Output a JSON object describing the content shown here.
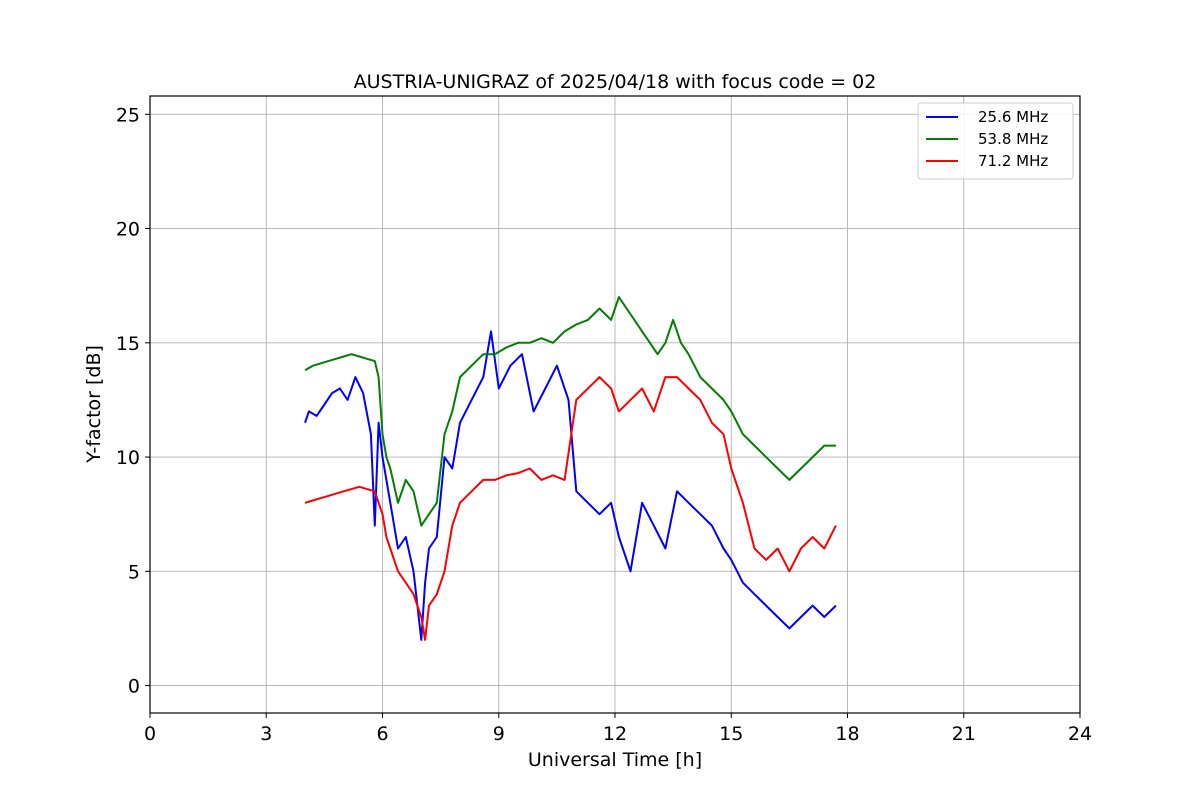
{
  "chart_data": {
    "type": "line",
    "title": "AUSTRIA-UNIGRAZ of 2025/04/18 with focus code = 02",
    "xlabel": "Universal Time [h]",
    "ylabel": "Y-factor [dB]",
    "xlim": [
      0,
      24
    ],
    "ylim": [
      -1.2,
      25.8
    ],
    "xticks": [
      0,
      3,
      6,
      9,
      12,
      15,
      18,
      21,
      24
    ],
    "yticks": [
      0,
      5,
      10,
      15,
      20,
      25
    ],
    "grid": true,
    "legend_position": "top-right",
    "series": [
      {
        "name": "25.6 MHz",
        "color": "#0000ff",
        "x": [
          4.0,
          4.1,
          4.3,
          4.5,
          4.7,
          4.9,
          5.1,
          5.3,
          5.5,
          5.7,
          5.8,
          5.9,
          6.0,
          6.1,
          6.2,
          6.4,
          6.6,
          6.8,
          7.0,
          7.1,
          7.2,
          7.4,
          7.6,
          7.8,
          8.0,
          8.3,
          8.6,
          8.8,
          9.0,
          9.3,
          9.6,
          9.9,
          10.2,
          10.5,
          10.8,
          11.0,
          11.3,
          11.6,
          11.9,
          12.1,
          12.4,
          12.7,
          13.0,
          13.3,
          13.6,
          13.9,
          14.2,
          14.5,
          14.8,
          15.0,
          15.3,
          15.6,
          15.9,
          16.2,
          16.5,
          16.8,
          17.1,
          17.4,
          17.7
        ],
        "y": [
          11.5,
          12.0,
          11.8,
          12.3,
          12.8,
          13.0,
          12.5,
          13.5,
          12.8,
          11.0,
          7.0,
          11.5,
          10.0,
          9.0,
          8.0,
          6.0,
          6.5,
          5.0,
          2.0,
          4.5,
          6.0,
          6.5,
          10.0,
          9.5,
          11.5,
          12.5,
          13.5,
          15.5,
          13.0,
          14.0,
          14.5,
          12.0,
          13.0,
          14.0,
          12.5,
          8.5,
          8.0,
          7.5,
          8.0,
          6.5,
          5.0,
          8.0,
          7.0,
          6.0,
          8.5,
          8.0,
          7.5,
          7.0,
          6.0,
          5.5,
          4.5,
          4.0,
          3.5,
          3.0,
          2.5,
          3.0,
          3.5,
          3.0,
          3.5
        ]
      },
      {
        "name": "53.8 MHz",
        "color": "#008000",
        "x": [
          4.0,
          4.2,
          4.4,
          4.6,
          4.8,
          5.0,
          5.2,
          5.4,
          5.6,
          5.8,
          5.9,
          6.0,
          6.1,
          6.2,
          6.4,
          6.6,
          6.8,
          7.0,
          7.2,
          7.4,
          7.6,
          7.8,
          8.0,
          8.3,
          8.6,
          8.9,
          9.2,
          9.5,
          9.8,
          10.1,
          10.4,
          10.7,
          11.0,
          11.3,
          11.6,
          11.9,
          12.1,
          12.3,
          12.5,
          12.7,
          12.9,
          13.1,
          13.3,
          13.5,
          13.7,
          13.9,
          14.2,
          14.5,
          14.8,
          15.0,
          15.3,
          15.6,
          15.9,
          16.2,
          16.5,
          16.8,
          17.1,
          17.4,
          17.7
        ],
        "y": [
          13.8,
          14.0,
          14.1,
          14.2,
          14.3,
          14.4,
          14.5,
          14.4,
          14.3,
          14.2,
          13.5,
          11.0,
          10.0,
          9.5,
          8.0,
          9.0,
          8.5,
          7.0,
          7.5,
          8.0,
          11.0,
          12.0,
          13.5,
          14.0,
          14.5,
          14.5,
          14.8,
          15.0,
          15.0,
          15.2,
          15.0,
          15.5,
          15.8,
          16.0,
          16.5,
          16.0,
          17.0,
          16.5,
          16.0,
          15.5,
          15.0,
          14.5,
          15.0,
          16.0,
          15.0,
          14.5,
          13.5,
          13.0,
          12.5,
          12.0,
          11.0,
          10.5,
          10.0,
          9.5,
          9.0,
          9.5,
          10.0,
          10.5,
          10.5
        ]
      },
      {
        "name": "71.2 MHz",
        "color": "#ff0000",
        "x": [
          4.0,
          4.2,
          4.4,
          4.6,
          4.8,
          5.0,
          5.2,
          5.4,
          5.6,
          5.8,
          5.9,
          6.0,
          6.1,
          6.2,
          6.4,
          6.6,
          6.8,
          7.0,
          7.1,
          7.2,
          7.4,
          7.6,
          7.8,
          8.0,
          8.3,
          8.6,
          8.9,
          9.2,
          9.5,
          9.8,
          10.1,
          10.4,
          10.7,
          11.0,
          11.3,
          11.6,
          11.9,
          12.1,
          12.4,
          12.7,
          13.0,
          13.3,
          13.6,
          13.9,
          14.2,
          14.5,
          14.8,
          15.0,
          15.3,
          15.6,
          15.9,
          16.2,
          16.5,
          16.8,
          17.1,
          17.4,
          17.7
        ],
        "y": [
          8.0,
          8.1,
          8.2,
          8.3,
          8.4,
          8.5,
          8.6,
          8.7,
          8.6,
          8.5,
          8.0,
          7.5,
          6.5,
          6.0,
          5.0,
          4.5,
          4.0,
          3.0,
          2.0,
          3.5,
          4.0,
          5.0,
          7.0,
          8.0,
          8.5,
          9.0,
          9.0,
          9.2,
          9.3,
          9.5,
          9.0,
          9.2,
          9.0,
          12.5,
          13.0,
          13.5,
          13.0,
          12.0,
          12.5,
          13.0,
          12.0,
          13.5,
          13.5,
          13.0,
          12.5,
          11.5,
          11.0,
          9.5,
          8.0,
          6.0,
          5.5,
          6.0,
          5.0,
          6.0,
          6.5,
          6.0,
          7.0
        ]
      }
    ]
  }
}
